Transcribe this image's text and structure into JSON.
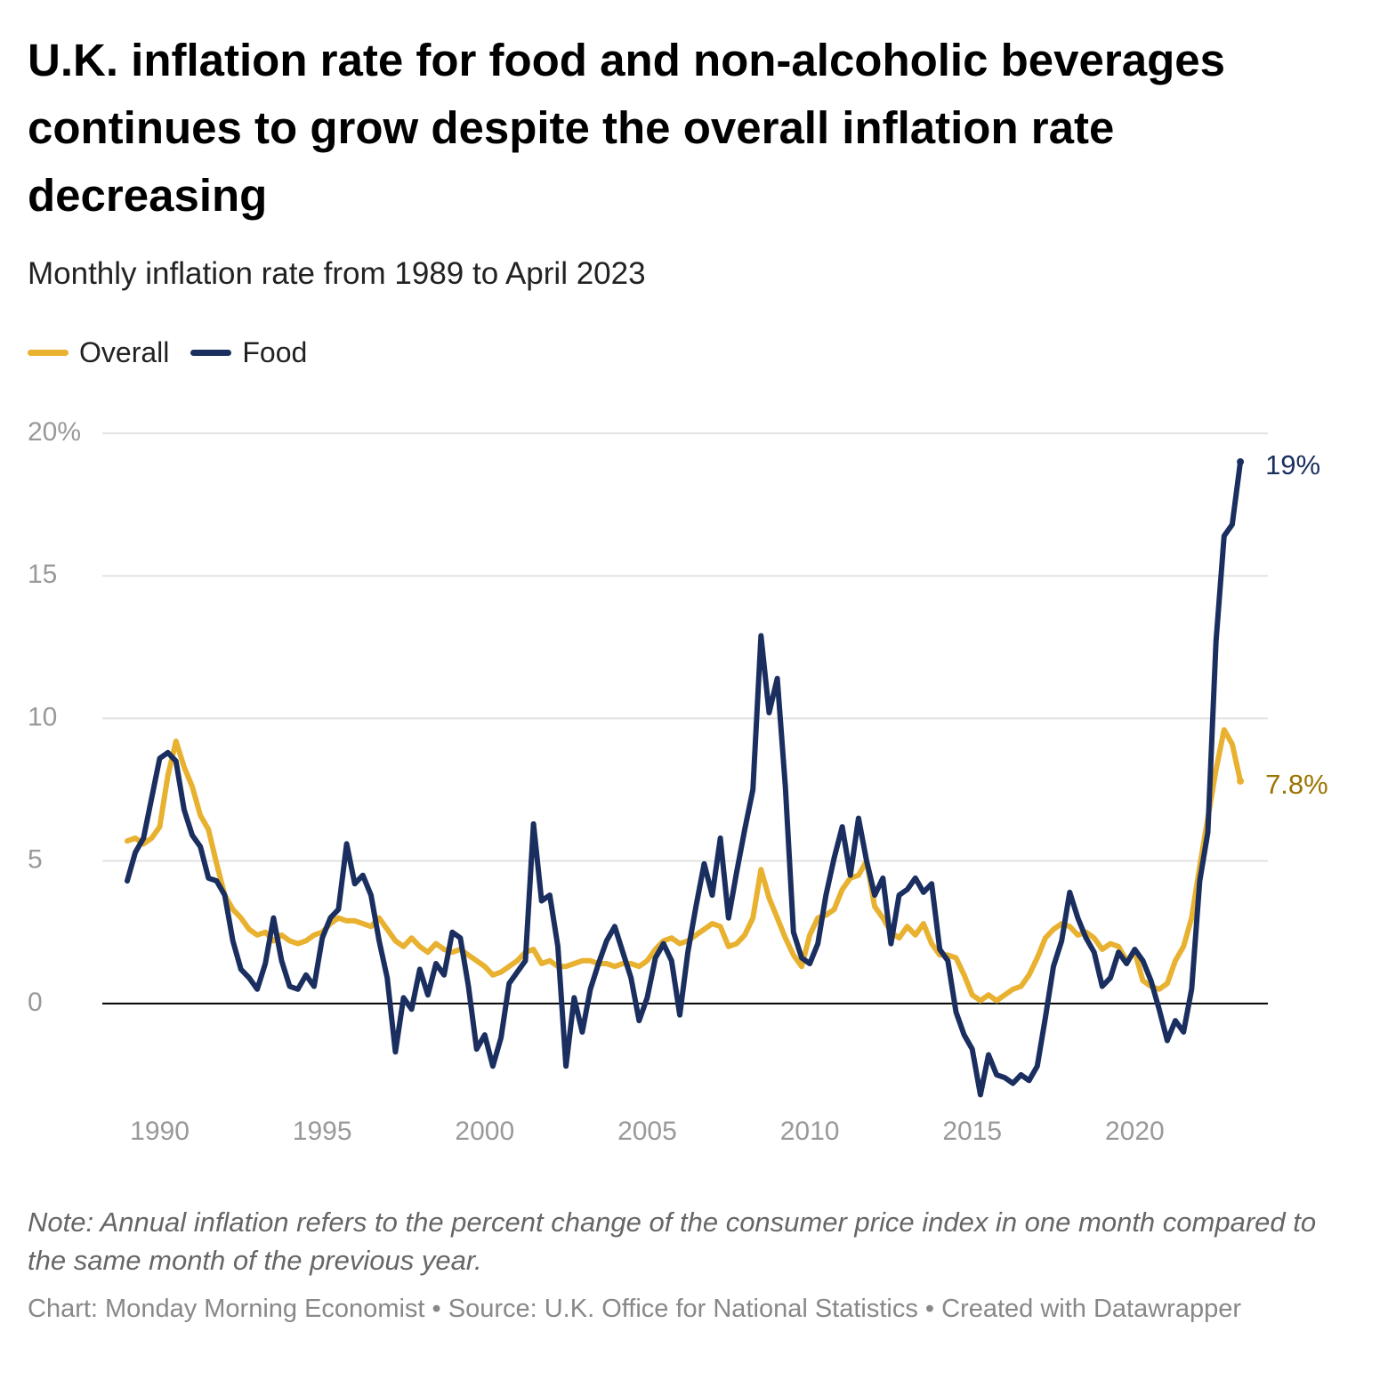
{
  "chart_data": {
    "type": "line",
    "title": "U.K. inflation rate for food and non-alcoholic beverages continues to grow despite the overall inflation rate decreasing",
    "subtitle": "Monthly inflation rate from 1989 to April 2023",
    "note": "Note: Annual inflation refers to the percent change of the consumer price index in one month compared to the same month of the previous year.",
    "footer": "Chart: Monday Morning Economist • Source: U.K. Office for National Statistics • Created with Datawrapper",
    "x": [
      1989,
      1989.25,
      1989.5,
      1989.75,
      1990,
      1990.25,
      1990.5,
      1990.75,
      1991,
      1991.25,
      1991.5,
      1991.75,
      1992,
      1992.25,
      1992.5,
      1992.75,
      1993,
      1993.25,
      1993.5,
      1993.75,
      1994,
      1994.25,
      1994.5,
      1994.75,
      1995,
      1995.25,
      1995.5,
      1995.75,
      1996,
      1996.25,
      1996.5,
      1996.75,
      1997,
      1997.25,
      1997.5,
      1997.75,
      1998,
      1998.25,
      1998.5,
      1998.75,
      1999,
      1999.25,
      1999.5,
      1999.75,
      2000,
      2000.25,
      2000.5,
      2000.75,
      2001,
      2001.25,
      2001.5,
      2001.75,
      2002,
      2002.25,
      2002.5,
      2002.75,
      2003,
      2003.25,
      2003.5,
      2003.75,
      2004,
      2004.25,
      2004.5,
      2004.75,
      2005,
      2005.25,
      2005.5,
      2005.75,
      2006,
      2006.25,
      2006.5,
      2006.75,
      2007,
      2007.25,
      2007.5,
      2007.75,
      2008,
      2008.25,
      2008.5,
      2008.75,
      2009,
      2009.25,
      2009.5,
      2009.75,
      2010,
      2010.25,
      2010.5,
      2010.75,
      2011,
      2011.25,
      2011.5,
      2011.75,
      2012,
      2012.25,
      2012.5,
      2012.75,
      2013,
      2013.25,
      2013.5,
      2013.75,
      2014,
      2014.25,
      2014.5,
      2014.75,
      2015,
      2015.25,
      2015.5,
      2015.75,
      2016,
      2016.25,
      2016.5,
      2016.75,
      2017,
      2017.25,
      2017.5,
      2017.75,
      2018,
      2018.25,
      2018.5,
      2018.75,
      2019,
      2019.25,
      2019.5,
      2019.75,
      2020,
      2020.25,
      2020.5,
      2020.75,
      2021,
      2021.25,
      2021.5,
      2021.75,
      2022,
      2022.25,
      2022.5,
      2022.75,
      2023,
      2023.25
    ],
    "series": [
      {
        "name": "Overall",
        "color": "#e8b130",
        "label_color": "#9a7400",
        "end_label": "7.8%",
        "values": [
          5.7,
          5.8,
          5.6,
          5.8,
          6.2,
          8.0,
          9.2,
          8.3,
          7.6,
          6.6,
          6.1,
          4.9,
          3.8,
          3.3,
          3.0,
          2.6,
          2.4,
          2.5,
          2.2,
          2.4,
          2.2,
          2.1,
          2.2,
          2.4,
          2.5,
          2.8,
          3.0,
          2.9,
          2.9,
          2.8,
          2.7,
          3.0,
          2.6,
          2.2,
          2.0,
          2.3,
          2.0,
          1.8,
          2.1,
          1.9,
          1.8,
          1.9,
          1.7,
          1.5,
          1.3,
          1.0,
          1.1,
          1.3,
          1.5,
          1.8,
          1.9,
          1.4,
          1.5,
          1.3,
          1.3,
          1.4,
          1.5,
          1.5,
          1.4,
          1.4,
          1.3,
          1.4,
          1.4,
          1.3,
          1.5,
          1.9,
          2.2,
          2.3,
          2.1,
          2.2,
          2.4,
          2.6,
          2.8,
          2.7,
          2.0,
          2.1,
          2.4,
          3.0,
          4.7,
          3.7,
          3.0,
          2.3,
          1.7,
          1.3,
          2.4,
          3.0,
          3.1,
          3.3,
          4.0,
          4.4,
          4.5,
          5.0,
          3.4,
          3.0,
          2.5,
          2.3,
          2.7,
          2.4,
          2.8,
          2.1,
          1.7,
          1.7,
          1.6,
          1.0,
          0.3,
          0.1,
          0.3,
          0.1,
          0.3,
          0.5,
          0.6,
          1.0,
          1.6,
          2.3,
          2.6,
          2.8,
          2.7,
          2.4,
          2.5,
          2.3,
          1.9,
          2.1,
          2.0,
          1.5,
          1.8,
          0.8,
          0.6,
          0.5,
          0.7,
          1.5,
          2.0,
          3.0,
          4.8,
          6.5,
          8.2,
          9.6,
          9.1,
          7.8
        ]
      },
      {
        "name": "Food",
        "color": "#1a2f5f",
        "label_color": "#1a2f5f",
        "end_label": "19%",
        "values": [
          4.3,
          5.3,
          5.8,
          7.2,
          8.6,
          8.8,
          8.5,
          6.8,
          5.9,
          5.5,
          4.4,
          4.3,
          3.8,
          2.2,
          1.2,
          0.9,
          0.5,
          1.4,
          3.0,
          1.5,
          0.6,
          0.5,
          1.0,
          0.6,
          2.3,
          3.0,
          3.3,
          5.6,
          4.2,
          4.5,
          3.8,
          2.2,
          0.9,
          -1.7,
          0.2,
          -0.2,
          1.2,
          0.3,
          1.4,
          1.0,
          2.5,
          2.3,
          0.6,
          -1.6,
          -1.1,
          -2.2,
          -1.2,
          0.7,
          1.1,
          1.5,
          6.3,
          3.6,
          3.8,
          2.0,
          -2.2,
          0.2,
          -1.0,
          0.5,
          1.4,
          2.2,
          2.7,
          1.8,
          0.9,
          -0.6,
          0.2,
          1.6,
          2.1,
          1.5,
          -0.4,
          1.8,
          3.4,
          4.9,
          3.8,
          5.8,
          3.0,
          4.6,
          6.1,
          7.5,
          12.9,
          10.2,
          11.4,
          7.6,
          2.5,
          1.6,
          1.4,
          2.1,
          3.8,
          5.1,
          6.2,
          4.5,
          6.5,
          5.0,
          3.8,
          4.4,
          2.1,
          3.8,
          4.0,
          4.4,
          3.9,
          4.2,
          1.9,
          1.5,
          -0.3,
          -1.1,
          -1.6,
          -3.2,
          -1.8,
          -2.5,
          -2.6,
          -2.8,
          -2.5,
          -2.7,
          -2.2,
          -0.5,
          1.3,
          2.2,
          3.9,
          3.0,
          2.3,
          1.8,
          0.6,
          0.9,
          1.8,
          1.4,
          1.9,
          1.5,
          0.8,
          -0.2,
          -1.3,
          -0.6,
          -1.0,
          0.5,
          4.3,
          6.0,
          12.7,
          16.4,
          16.8,
          19.0
        ]
      }
    ],
    "xlim": [
      1989,
      2023.33
    ],
    "xticks": [
      1990,
      1995,
      2000,
      2005,
      2010,
      2015,
      2020
    ],
    "ylim": [
      -3.5,
      20
    ],
    "yticks": [
      0,
      5,
      10,
      15,
      {
        "value": 20,
        "label": "20%"
      }
    ],
    "grid": true
  }
}
